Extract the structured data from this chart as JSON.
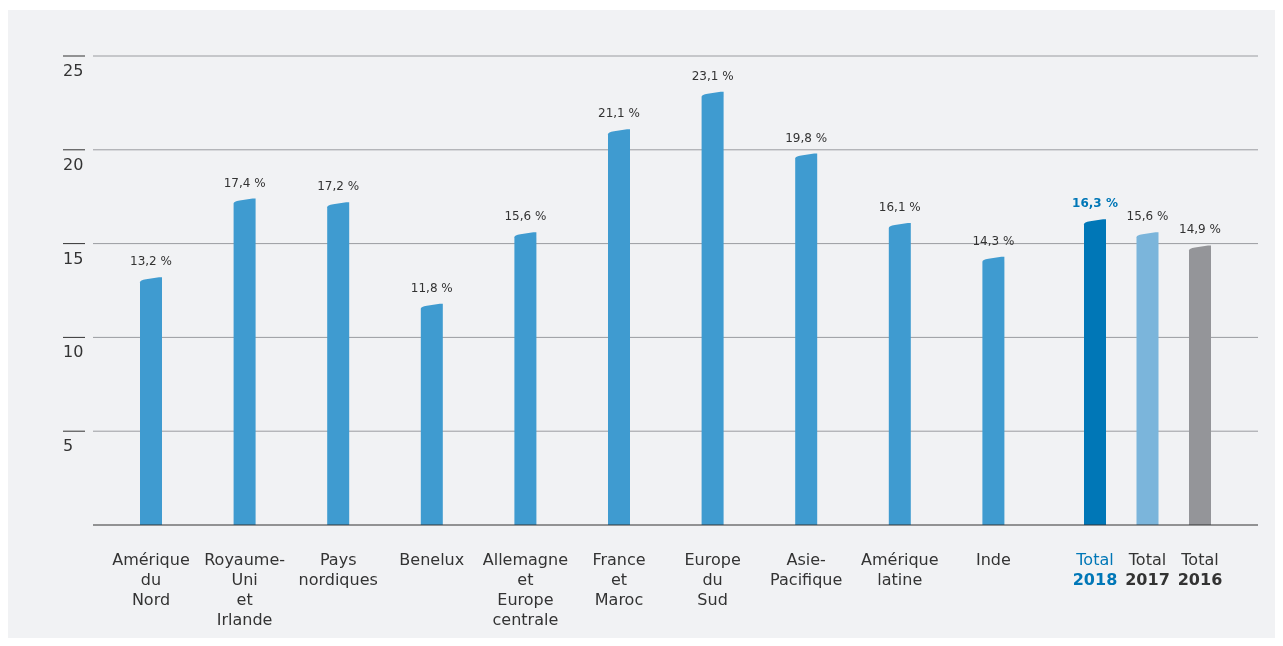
{
  "chart_data": {
    "type": "bar",
    "categories": [
      "Amérique\ndu\nNord",
      "Royaume-\nUni\net\nIrlande",
      "Pays\nnordiques",
      "Benelux",
      "Allemagne\net\nEurope\ncentrale",
      "France\net\nMaroc",
      "Europe\ndu\nSud",
      "Asie-\nPacifique",
      "Amérique\nlatine",
      "Inde",
      "Total\n2018",
      "Total\n2017",
      "Total\n2016"
    ],
    "values": [
      13.2,
      17.4,
      17.2,
      11.8,
      15.6,
      21.1,
      23.1,
      19.8,
      16.1,
      14.3,
      16.3,
      15.6,
      14.9
    ],
    "value_labels": [
      "13,2 %",
      "17,4 %",
      "17,2 %",
      "11,8 %",
      "15,6 %",
      "21,1 %",
      "23,1 %",
      "19,8 %",
      "16,1 %",
      "14,3 %",
      "16,3 %",
      "15,6 %",
      "14,9 %"
    ],
    "colors": [
      "#3f9bd0",
      "#3f9bd0",
      "#3f9bd0",
      "#3f9bd0",
      "#3f9bd0",
      "#3f9bd0",
      "#3f9bd0",
      "#3f9bd0",
      "#3f9bd0",
      "#3f9bd0",
      "#0077b7",
      "#7bb5db",
      "#949599"
    ],
    "ylim": [
      0,
      25
    ],
    "yticks": [
      5,
      10,
      15,
      20,
      25
    ],
    "grid": "y"
  }
}
